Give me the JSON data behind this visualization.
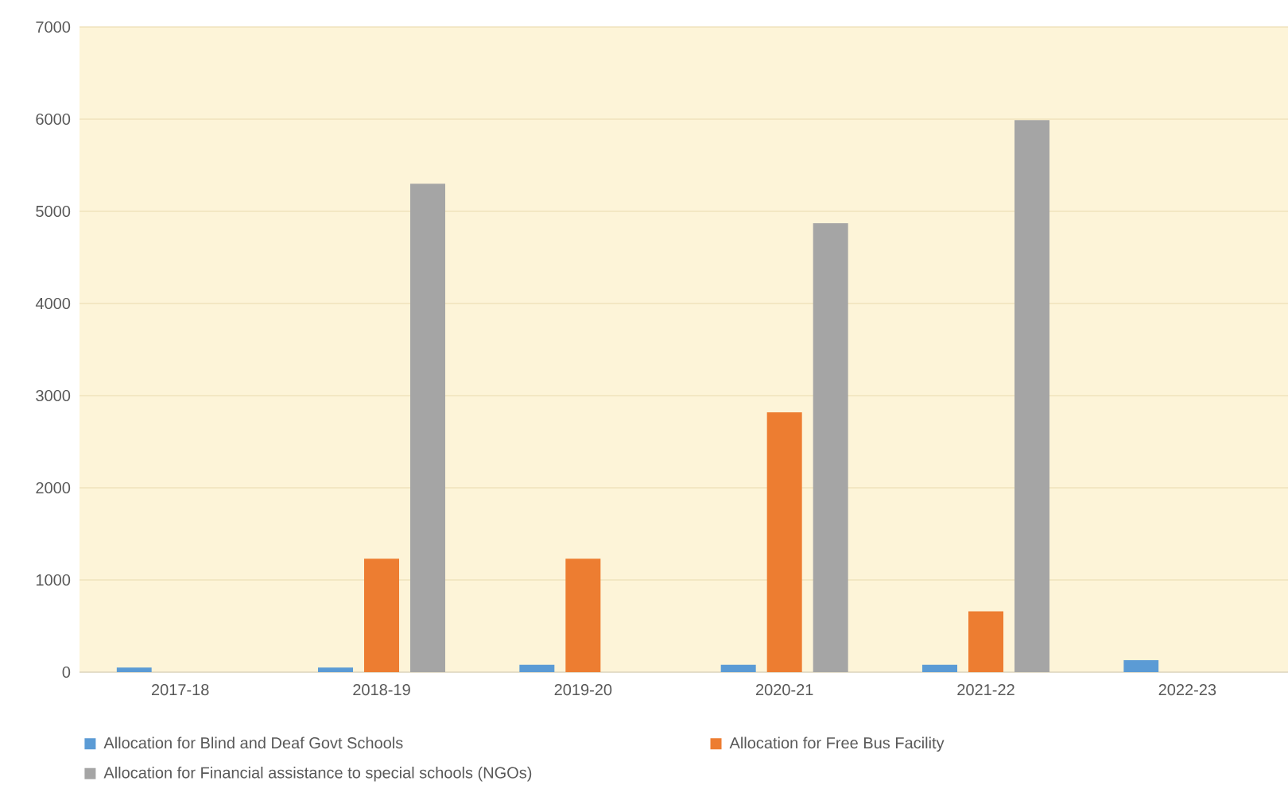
{
  "chart_data": {
    "type": "bar",
    "categories": [
      "2017-18",
      "2018-19",
      "2019-20",
      "2020-21",
      "2021-22",
      "2022-23"
    ],
    "series": [
      {
        "name": "Allocation for Blind and Deaf Govt Schools",
        "color": "#5b9bd5",
        "values": [
          50,
          50,
          80,
          80,
          80,
          130
        ]
      },
      {
        "name": "Allocation for Free Bus Facility",
        "color": "#ed7d31",
        "values": [
          null,
          1230,
          1230,
          2820,
          660,
          null
        ]
      },
      {
        "name": "Allocation for Financial assistance to special schools (NGOs)",
        "color": "#a5a5a5",
        "values": [
          null,
          5300,
          null,
          4870,
          5990,
          null
        ]
      }
    ],
    "ylim": [
      0,
      7000
    ],
    "yticks": [
      0,
      1000,
      2000,
      3000,
      4000,
      5000,
      6000,
      7000
    ],
    "grid": "y",
    "legend": "bottom"
  }
}
